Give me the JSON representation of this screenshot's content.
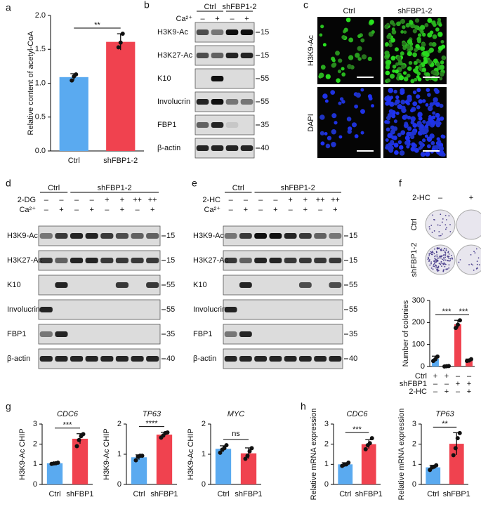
{
  "panel_labels": [
    "a",
    "b",
    "c",
    "d",
    "e",
    "f",
    "g",
    "h"
  ],
  "chart_data": [
    {
      "type": "bar",
      "ylabel": "Relative content of acetyl-CoA",
      "categories": [
        "Ctrl",
        "shFBP1-2"
      ],
      "values": [
        1.09,
        1.61
      ],
      "errors": [
        0.05,
        0.12
      ],
      "points": [
        [
          1.04,
          1.1,
          1.13
        ],
        [
          1.53,
          1.6,
          1.73
        ]
      ],
      "colors": [
        "#5aaaf0",
        "#f0424f"
      ],
      "ylim": [
        0,
        2
      ],
      "yticks": [
        {
          "value": 0,
          "label": "0.0"
        },
        {
          "value": 0.5,
          "label": "0.5"
        },
        {
          "value": 1,
          "label": "1.0"
        },
        {
          "value": 1.5,
          "label": "1.5"
        },
        {
          "value": 2,
          "label": "2.0"
        }
      ],
      "significance": "**"
    },
    {
      "type": "bar",
      "ylabel": "Number of colonies",
      "values": [
        35,
        2,
        192,
        28
      ],
      "errors": [
        12,
        1,
        18,
        6
      ],
      "points": [
        [
          25,
          33,
          45
        ],
        [
          0,
          1,
          2
        ],
        [
          175,
          190,
          210
        ],
        [
          25,
          27,
          33
        ]
      ],
      "colors": [
        "#5aaaf0",
        "#5aaaf0",
        "#f0424f",
        "#f0424f"
      ],
      "ylim": [
        0,
        300
      ],
      "yticks": [
        0,
        100,
        200,
        300
      ],
      "significance": [
        "***",
        "***"
      ],
      "conditions": [
        {
          "label": "Ctrl",
          "marks": [
            "+",
            "+",
            "–",
            "–"
          ]
        },
        {
          "label": "shFBP1",
          "marks": [
            "–",
            "–",
            "+",
            "+"
          ]
        },
        {
          "label": "2-HC",
          "marks": [
            "–",
            "+",
            "–",
            "+"
          ]
        }
      ]
    },
    {
      "type": "bar",
      "title": "CDC6",
      "ylabel": "H3K9-Ac CHIP",
      "categories": [
        "Ctrl",
        "shFBP1"
      ],
      "values": [
        1.05,
        2.27
      ],
      "errors": [
        0.04,
        0.25
      ],
      "points": [
        [
          1.02,
          1.04,
          1.05,
          1.08
        ],
        [
          1.9,
          2.2,
          2.4,
          2.5
        ]
      ],
      "colors": [
        "#5aaaf0",
        "#f0424f"
      ],
      "ylim": [
        0,
        3
      ],
      "yticks": [
        0,
        1,
        2,
        3
      ],
      "significance": "***"
    },
    {
      "type": "bar",
      "title": "TP63",
      "ylabel": "H3K9-Ac CHIP",
      "categories": [
        "Ctrl",
        "shFBP1"
      ],
      "values": [
        0.9,
        1.65
      ],
      "errors": [
        0.08,
        0.08
      ],
      "points": [
        [
          0.8,
          0.92,
          0.95,
          0.95
        ],
        [
          1.55,
          1.62,
          1.7,
          1.72
        ]
      ],
      "colors": [
        "#5aaaf0",
        "#f0424f"
      ],
      "ylim": [
        0,
        2
      ],
      "yticks": [
        0,
        1,
        2
      ],
      "significance": "****"
    },
    {
      "type": "bar",
      "title": "MYC",
      "ylabel": "H3K9-Ac CHIP",
      "categories": [
        "Ctrl",
        "shFBP1"
      ],
      "values": [
        1.18,
        1.03
      ],
      "errors": [
        0.1,
        0.18
      ],
      "points": [
        [
          1.05,
          1.15,
          1.2,
          1.3
        ],
        [
          0.85,
          0.95,
          1.1,
          1.2
        ]
      ],
      "colors": [
        "#5aaaf0",
        "#f0424f"
      ],
      "ylim": [
        0,
        2
      ],
      "yticks": [
        0,
        1,
        2
      ],
      "significance": "ns"
    },
    {
      "type": "bar",
      "title": "CDC6",
      "ylabel": "Relative mRNA expression",
      "categories": [
        "Ctrl",
        "shFBP1"
      ],
      "values": [
        1.0,
        2.0
      ],
      "errors": [
        0.08,
        0.22
      ],
      "points": [
        [
          0.92,
          0.98,
          1.0,
          1.08
        ],
        [
          1.75,
          1.95,
          2.05,
          2.3
        ]
      ],
      "colors": [
        "#5aaaf0",
        "#f0424f"
      ],
      "ylim": [
        0,
        3
      ],
      "yticks": [
        0,
        1,
        2,
        3
      ],
      "significance": "***"
    },
    {
      "type": "bar",
      "title": "TP63",
      "ylabel": "Relative mRNA expression",
      "categories": [
        "Ctrl",
        "shFBP1"
      ],
      "values": [
        0.85,
        2.02
      ],
      "errors": [
        0.1,
        0.55
      ],
      "points": [
        [
          0.72,
          0.85,
          0.88,
          0.95
        ],
        [
          1.45,
          1.8,
          2.3,
          2.55
        ]
      ],
      "colors": [
        "#5aaaf0",
        "#f0424f"
      ],
      "ylim": [
        0,
        3
      ],
      "yticks": [
        0,
        1,
        2,
        3
      ],
      "significance": "**"
    }
  ],
  "blots": [
    {
      "groups": [
        "Ctrl",
        "shFBP1-2"
      ],
      "conditions": [
        {
          "label": "Ca²⁺",
          "marks": [
            "–",
            "+",
            "–",
            "+"
          ]
        }
      ],
      "rows": [
        {
          "label": "H3K9-Ac",
          "marker": "15"
        },
        {
          "label": "H3K27-Ac",
          "marker": "15"
        },
        {
          "label": "K10",
          "marker": "55"
        },
        {
          "label": "Involucrin",
          "marker": "55"
        },
        {
          "label": "FBP1",
          "marker": "35"
        },
        {
          "label": "β-actin",
          "marker": "40"
        }
      ]
    },
    {
      "groups": [
        "Ctrl",
        "shFBP1-2"
      ],
      "conditions": [
        {
          "label": "2-DG",
          "marks": [
            "–",
            "–",
            "–",
            "–",
            "+",
            "+",
            "++",
            "++"
          ]
        },
        {
          "label": "Ca²⁺",
          "marks": [
            "–",
            "+",
            "–",
            "+",
            "–",
            "+",
            "–",
            "+"
          ]
        }
      ],
      "rows": [
        {
          "label": "H3K9-Ac",
          "marker": "15"
        },
        {
          "label": "H3K27-Ac",
          "marker": "15"
        },
        {
          "label": "K10",
          "marker": "55"
        },
        {
          "label": "Involucrin",
          "marker": "55"
        },
        {
          "label": "FBP1",
          "marker": "35"
        },
        {
          "label": "β-actin",
          "marker": "40"
        }
      ]
    },
    {
      "groups": [
        "Ctrl",
        "shFBP1-2"
      ],
      "conditions": [
        {
          "label": "2-HC",
          "marks": [
            "–",
            "–",
            "–",
            "–",
            "+",
            "+",
            "++",
            "++"
          ]
        },
        {
          "label": "Ca²⁺",
          "marks": [
            "–",
            "+",
            "–",
            "+",
            "–",
            "+",
            "–",
            "+"
          ]
        }
      ],
      "rows": [
        {
          "label": "H3K9-Ac",
          "marker": "15"
        },
        {
          "label": "H3K27-Ac",
          "marker": "15"
        },
        {
          "label": "K10",
          "marker": "55"
        },
        {
          "label": "Involucrin",
          "marker": "55"
        },
        {
          "label": "FBP1",
          "marker": "35"
        },
        {
          "label": "β-actin",
          "marker": "40"
        }
      ]
    }
  ],
  "microscopy": {
    "columns": [
      "Ctrl",
      "shFBP1-2"
    ],
    "rows": [
      "H3K9-Ac",
      "DAPI"
    ]
  },
  "plates": {
    "treatment": "2-HC",
    "marks": [
      "–",
      "+"
    ],
    "rows": [
      "Ctrl",
      "shFBP1-2"
    ]
  }
}
